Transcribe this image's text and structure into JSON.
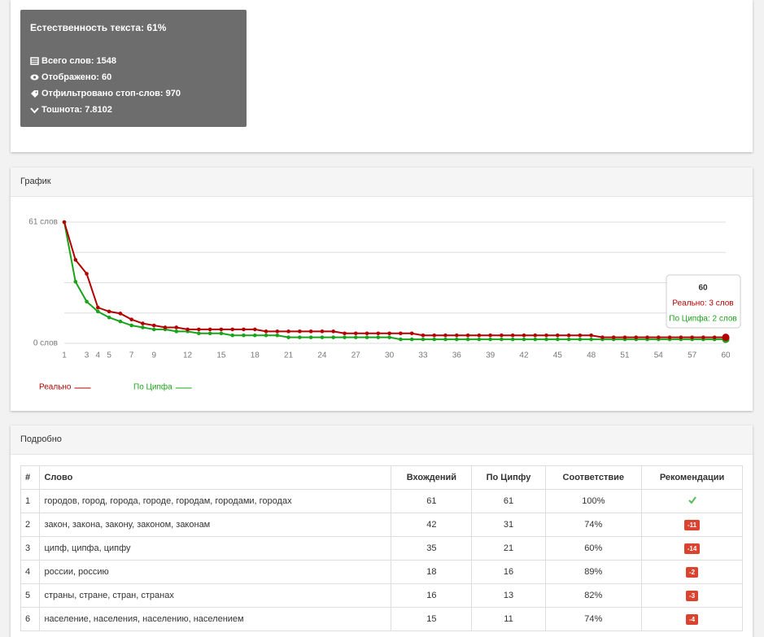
{
  "stats": {
    "title": "Естественность текста: 61%",
    "items": [
      "Всего слов: 1548",
      "Отображено: 60",
      "Отфильтровано стоп-слов: 970",
      "Тошнота: 7.8102"
    ]
  },
  "chart_panel": {
    "title": "График"
  },
  "chart_data": {
    "type": "line",
    "x": [
      1,
      2,
      3,
      4,
      5,
      6,
      7,
      8,
      9,
      10,
      11,
      12,
      13,
      14,
      15,
      16,
      17,
      18,
      19,
      20,
      21,
      22,
      23,
      24,
      25,
      26,
      27,
      28,
      29,
      30,
      31,
      32,
      33,
      34,
      35,
      36,
      37,
      38,
      39,
      40,
      41,
      42,
      43,
      44,
      45,
      46,
      47,
      48,
      49,
      50,
      51,
      52,
      53,
      54,
      55,
      56,
      57,
      58,
      59,
      60
    ],
    "series": [
      {
        "name": "Реально",
        "color": "#b30000",
        "values": [
          61,
          42,
          35,
          18,
          16,
          15,
          12,
          10,
          9,
          8,
          8,
          7,
          7,
          7,
          7,
          7,
          7,
          7,
          6,
          6,
          6,
          6,
          6,
          6,
          6,
          5,
          5,
          5,
          5,
          5,
          5,
          5,
          4,
          4,
          4,
          4,
          4,
          4,
          4,
          4,
          4,
          4,
          4,
          4,
          4,
          4,
          4,
          4,
          3,
          3,
          3,
          3,
          3,
          3,
          3,
          3,
          3,
          3,
          3,
          3
        ]
      },
      {
        "name": "По Ципфа",
        "color": "#1aa31a",
        "values": [
          61,
          31,
          21,
          16,
          13,
          11,
          9,
          8,
          7,
          7,
          6,
          6,
          5,
          5,
          5,
          4,
          4,
          4,
          4,
          4,
          3,
          3,
          3,
          3,
          3,
          3,
          3,
          3,
          3,
          3,
          2,
          2,
          2,
          2,
          2,
          2,
          2,
          2,
          2,
          2,
          2,
          2,
          2,
          2,
          2,
          2,
          2,
          2,
          2,
          2,
          2,
          2,
          2,
          2,
          2,
          2,
          2,
          2,
          2,
          2
        ]
      }
    ],
    "xlim": [
      1,
      60
    ],
    "xticks": [
      1,
      3,
      4,
      5,
      7,
      9,
      12,
      15,
      18,
      21,
      24,
      27,
      30,
      33,
      36,
      39,
      42,
      45,
      48,
      51,
      54,
      57,
      60
    ],
    "ylim": [
      0,
      61
    ],
    "yticks": [
      {
        "value": 61,
        "label": "61 слов"
      },
      {
        "value": 0,
        "label": "0 слов"
      }
    ],
    "grid": true,
    "tooltip": {
      "title": "60",
      "lines": [
        "Реально: 3 слов",
        "По Ципфа: 2 слов"
      ]
    }
  },
  "table_panel": {
    "title": "Подробно"
  },
  "table": {
    "header": [
      "#",
      "Слово",
      "Вхождений",
      "По Ципфу",
      "Соответствие",
      "Рекомендации"
    ],
    "rows": [
      [
        "1",
        "городов, город, города, городе, городам, городами, городах",
        "61",
        "61",
        "100%",
        null
      ],
      [
        "2",
        "закон, закона, закону, законом, законам",
        "42",
        "31",
        "74%",
        "-11"
      ],
      [
        "3",
        "ципф, ципфа, ципфу",
        "35",
        "21",
        "60%",
        "-14"
      ],
      [
        "4",
        "россии, россию",
        "18",
        "16",
        "89%",
        "-2"
      ],
      [
        "5",
        "страны, стране, стран, странах",
        "16",
        "13",
        "82%",
        "-3"
      ],
      [
        "6",
        "население, населения, населению, населением",
        "15",
        "11",
        "74%",
        "-4"
      ]
    ]
  }
}
